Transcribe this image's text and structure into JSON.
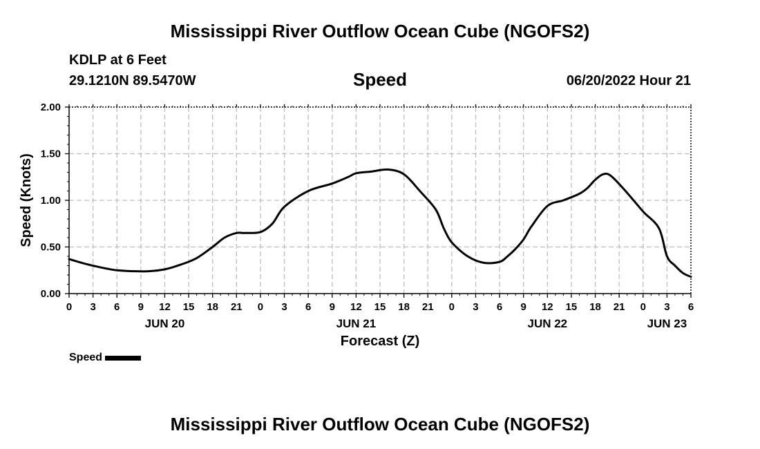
{
  "header": {
    "title": "Mississippi River Outflow Ocean Cube (NGOFS2)",
    "station": "KDLP at 6 Feet",
    "coords": "29.1210N  89.5470W",
    "subtitle": "Speed",
    "datetime": "06/20/2022 Hour 21",
    "footer_title": "Mississippi River Outflow Ocean Cube (NGOFS2)"
  },
  "legend": {
    "label": "Speed"
  },
  "chart_data": {
    "type": "line",
    "title": "Speed",
    "xlabel": "Forecast (Z)",
    "ylabel": "Speed (Knots)",
    "xlim": [
      0,
      78
    ],
    "ylim": [
      0,
      2.0
    ],
    "yticks": [
      0.0,
      0.5,
      1.0,
      1.5,
      2.0
    ],
    "ytick_labels": [
      "0.00",
      "0.50",
      "1.00",
      "1.50",
      "2.00"
    ],
    "xtick_labels": [
      "0",
      "3",
      "6",
      "9",
      "12",
      "15",
      "18",
      "21",
      "0",
      "3",
      "6",
      "9",
      "12",
      "15",
      "18",
      "21",
      "0",
      "3",
      "6",
      "9",
      "12",
      "15",
      "18",
      "21",
      "0",
      "3",
      "6"
    ],
    "date_labels": [
      {
        "hour": 12,
        "label": "JUN 20"
      },
      {
        "hour": 36,
        "label": "JUN 21"
      },
      {
        "hour": 60,
        "label": "JUN 22"
      },
      {
        "hour": 75,
        "label": "JUN 23"
      }
    ],
    "grid": true,
    "series": [
      {
        "name": "Speed",
        "color": "#000000",
        "x": [
          0,
          2,
          4,
          6,
          8,
          10,
          12,
          14,
          16,
          18,
          19.5,
          21,
          22,
          24,
          25.5,
          27,
          30,
          33,
          35,
          36,
          38,
          40,
          42,
          44,
          46,
          47,
          48,
          50,
          52,
          54,
          55,
          56,
          57,
          58,
          60,
          62,
          64,
          65,
          66,
          67,
          68,
          70,
          72,
          74,
          75,
          76,
          77,
          78
        ],
        "values": [
          0.37,
          0.32,
          0.28,
          0.25,
          0.24,
          0.24,
          0.26,
          0.31,
          0.38,
          0.5,
          0.6,
          0.65,
          0.65,
          0.66,
          0.75,
          0.93,
          1.1,
          1.18,
          1.25,
          1.29,
          1.31,
          1.33,
          1.28,
          1.1,
          0.9,
          0.7,
          0.55,
          0.4,
          0.33,
          0.34,
          0.4,
          0.48,
          0.58,
          0.72,
          0.94,
          1.0,
          1.07,
          1.13,
          1.22,
          1.28,
          1.26,
          1.08,
          0.88,
          0.7,
          0.4,
          0.3,
          0.22,
          0.18
        ]
      }
    ]
  }
}
